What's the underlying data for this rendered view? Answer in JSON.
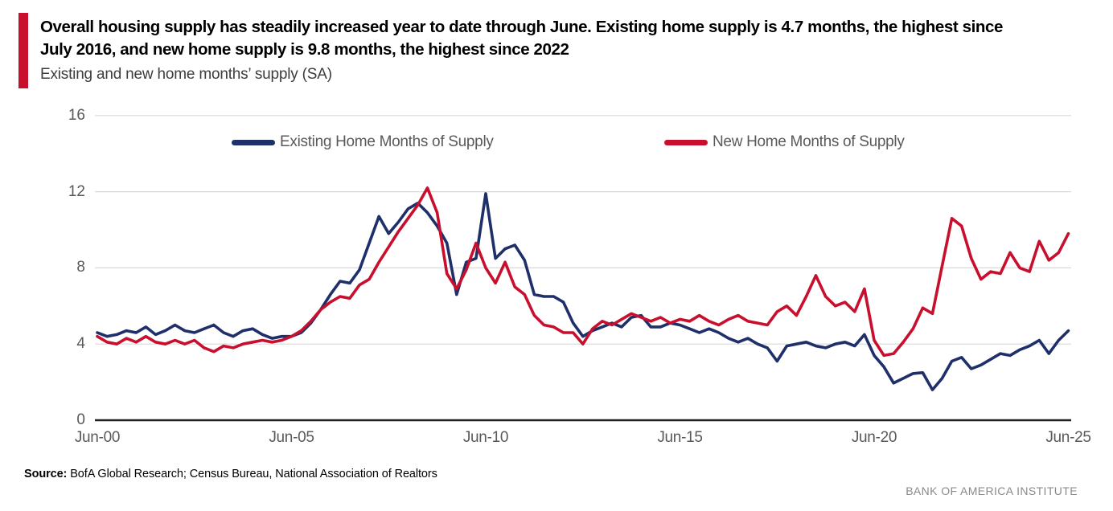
{
  "accent_color": "#c8102e",
  "header": {
    "title_lines": [
      "Overall housing supply has steadily increased year to date through June. Existing home supply is 4.7 months, the highest since",
      "July 2016, and new home supply is 9.8 months, the highest since 2022"
    ],
    "subtitle": "Existing and new home months’ supply (SA)"
  },
  "legend": [
    {
      "label": "Existing Home Months of Supply",
      "color": "#1e2f6a"
    },
    {
      "label": "New Home Months of Supply",
      "color": "#c8102e"
    }
  ],
  "footer": {
    "source_label": "Source:",
    "source_text": " BofA Global Research; Census Bureau, National Association of Realtors",
    "institute": "BANK OF AMERICA INSTITUTE"
  },
  "chart_data": {
    "type": "line",
    "title": "Overall housing supply has steadily increased year to date through June. Existing home supply is 4.7 months, the highest since July 2016, and new home supply is 9.8 months, the highest since 2022",
    "subtitle": "Existing and new home months’ supply (SA)",
    "x_tick_labels": [
      "Jun-00",
      "Jun-05",
      "Jun-10",
      "Jun-15",
      "Jun-20",
      "Jun-25"
    ],
    "y_ticks": [
      0,
      4,
      8,
      12,
      16
    ],
    "ylim": [
      0,
      16
    ],
    "x_start_year": 2000.5,
    "x_step_years": 0.25,
    "grid": "horizontal-only",
    "legend_position": "top",
    "axis_color": "#1f1f1f",
    "grid_color": "#d9d9d9",
    "series": [
      {
        "name": "Existing Home Months of Supply",
        "color": "#1e2f6a",
        "values": [
          4.6,
          4.4,
          4.5,
          4.7,
          4.6,
          4.9,
          4.5,
          4.7,
          5.0,
          4.7,
          4.6,
          4.8,
          5.0,
          4.6,
          4.4,
          4.7,
          4.8,
          4.5,
          4.3,
          4.4,
          4.4,
          4.6,
          5.1,
          5.8,
          6.6,
          7.3,
          7.2,
          7.9,
          9.3,
          10.7,
          9.8,
          10.4,
          11.1,
          11.4,
          10.9,
          10.2,
          9.3,
          6.6,
          8.3,
          8.5,
          11.9,
          8.5,
          9.0,
          9.2,
          8.4,
          6.6,
          6.5,
          6.5,
          6.2,
          5.1,
          4.4,
          4.7,
          4.9,
          5.1,
          4.9,
          5.4,
          5.5,
          4.9,
          4.9,
          5.1,
          5.0,
          4.8,
          4.6,
          4.8,
          4.6,
          4.3,
          4.1,
          4.3,
          4.0,
          3.8,
          3.1,
          3.9,
          4.0,
          4.1,
          3.9,
          3.8,
          4.0,
          4.1,
          3.9,
          4.5,
          3.4,
          2.8,
          1.95,
          2.2,
          2.45,
          2.5,
          1.6,
          2.2,
          3.1,
          3.3,
          2.7,
          2.9,
          3.2,
          3.5,
          3.4,
          3.7,
          3.9,
          4.2,
          3.5,
          4.2,
          4.7
        ]
      },
      {
        "name": "New Home Months of Supply",
        "color": "#c8102e",
        "values": [
          4.4,
          4.1,
          4.0,
          4.3,
          4.1,
          4.4,
          4.1,
          4.0,
          4.2,
          4.0,
          4.2,
          3.8,
          3.6,
          3.9,
          3.8,
          4.0,
          4.1,
          4.2,
          4.1,
          4.2,
          4.4,
          4.7,
          5.2,
          5.8,
          6.2,
          6.5,
          6.4,
          7.1,
          7.4,
          8.3,
          9.1,
          9.9,
          10.6,
          11.3,
          12.2,
          10.9,
          7.7,
          6.9,
          7.9,
          9.3,
          8.0,
          7.2,
          8.3,
          7.0,
          6.6,
          5.5,
          5.0,
          4.9,
          4.6,
          4.6,
          4.0,
          4.8,
          5.2,
          5.0,
          5.3,
          5.6,
          5.4,
          5.2,
          5.4,
          5.1,
          5.3,
          5.2,
          5.5,
          5.2,
          5.0,
          5.3,
          5.5,
          5.2,
          5.1,
          5.0,
          5.7,
          6.0,
          5.5,
          6.5,
          7.6,
          6.5,
          6.0,
          6.2,
          5.7,
          6.9,
          4.2,
          3.4,
          3.5,
          4.1,
          4.8,
          5.9,
          5.6,
          8.1,
          10.6,
          10.2,
          8.5,
          7.4,
          7.8,
          7.7,
          8.8,
          8.0,
          7.8,
          9.4,
          8.4,
          8.8,
          9.8
        ]
      }
    ]
  }
}
